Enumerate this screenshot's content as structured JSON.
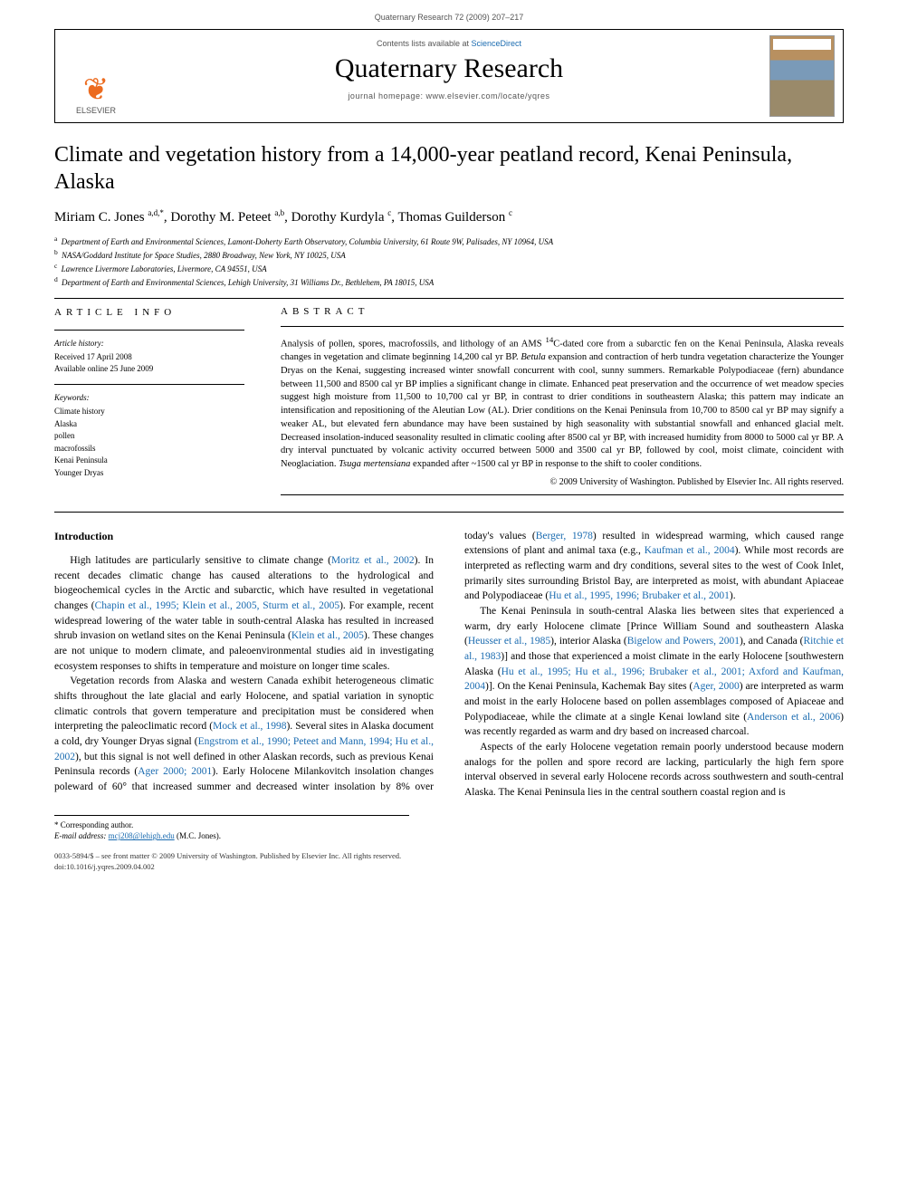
{
  "header": {
    "citation": "Quaternary Research 72 (2009) 207–217"
  },
  "banner": {
    "publisher_name": "ELSEVIER",
    "contents_prefix": "Contents lists available at ",
    "contents_link": "ScienceDirect",
    "journal": "Quaternary Research",
    "homepage_prefix": "journal homepage: ",
    "homepage_url": "www.elsevier.com/locate/yqres"
  },
  "article": {
    "title": "Climate and vegetation history from a 14,000-year peatland record, Kenai Peninsula, Alaska",
    "authors": [
      {
        "name": "Miriam C. Jones",
        "marks": "a,d,*"
      },
      {
        "name": "Dorothy M. Peteet",
        "marks": "a,b"
      },
      {
        "name": "Dorothy Kurdyla",
        "marks": "c"
      },
      {
        "name": "Thomas Guilderson",
        "marks": "c"
      }
    ],
    "affiliations": [
      {
        "key": "a",
        "text": "Department of Earth and Environmental Sciences, Lamont-Doherty Earth Observatory, Columbia University, 61 Route 9W, Palisades, NY 10964, USA"
      },
      {
        "key": "b",
        "text": "NASA/Goddard Institute for Space Studies, 2880 Broadway, New York, NY 10025, USA"
      },
      {
        "key": "c",
        "text": "Lawrence Livermore Laboratories, Livermore, CA 94551, USA"
      },
      {
        "key": "d",
        "text": "Department of Earth and Environmental Sciences, Lehigh University, 31 Williams Dr., Bethlehem, PA 18015, USA"
      }
    ]
  },
  "article_info": {
    "heading": "ARTICLE INFO",
    "history_label": "Article history:",
    "received": "Received 17 April 2008",
    "online": "Available online 25 June 2009",
    "keywords_label": "Keywords:",
    "keywords": [
      "Climate history",
      "Alaska",
      "pollen",
      "macrofossils",
      "Kenai Peninsula",
      "Younger Dryas"
    ]
  },
  "abstract": {
    "heading": "ABSTRACT",
    "text_parts": [
      "Analysis of pollen, spores, macrofossils, and lithology of an AMS ",
      "14",
      "C-dated core from a subarctic fen on the Kenai Peninsula, Alaska reveals changes in vegetation and climate beginning 14,200 cal yr BP. ",
      "Betula",
      " expansion and contraction of herb tundra vegetation characterize the Younger Dryas on the Kenai, suggesting increased winter snowfall concurrent with cool, sunny summers. Remarkable Polypodiaceae (fern) abundance between 11,500 and 8500 cal yr BP implies a significant change in climate. Enhanced peat preservation and the occurrence of wet meadow species suggest high moisture from 11,500 to 10,700 cal yr BP, in contrast to drier conditions in southeastern Alaska; this pattern may indicate an intensification and repositioning of the Aleutian Low (AL). Drier conditions on the Kenai Peninsula from 10,700 to 8500 cal yr BP may signify a weaker AL, but elevated fern abundance may have been sustained by high seasonality with substantial snowfall and enhanced glacial melt. Decreased insolation-induced seasonality resulted in climatic cooling after 8500 cal yr BP, with increased humidity from 8000 to 5000 cal yr BP. A dry interval punctuated by volcanic activity occurred between 5000 and 3500 cal yr BP, followed by cool, moist climate, coincident with Neoglaciation. ",
      "Tsuga mertensiana",
      " expanded after ~1500 cal yr BP in response to the shift to cooler conditions."
    ],
    "copyright": "© 2009 University of Washington. Published by Elsevier Inc. All rights reserved."
  },
  "body": {
    "intro_head": "Introduction",
    "p1_a": "High latitudes are particularly sensitive to climate change (",
    "p1_link1": "Moritz et al., 2002",
    "p1_b": "). In recent decades climatic change has caused alterations to the hydrological and biogeochemical cycles in the Arctic and subarctic, which have resulted in vegetational changes (",
    "p1_link2": "Chapin et al., 1995; Klein et al., 2005, Sturm et al., 2005",
    "p1_c": "). For example, recent widespread lowering of the water table in south-central Alaska has resulted in increased shrub invasion on wetland sites on the Kenai Peninsula (",
    "p1_link3": "Klein et al., 2005",
    "p1_d": "). These changes are not unique to modern climate, and paleoenvironmental studies aid in investigating ecosystem responses to shifts in temperature and moisture on longer time scales.",
    "p2_a": "Vegetation records from Alaska and western Canada exhibit heterogeneous climatic shifts throughout the late glacial and early Holocene, and spatial variation in synoptic climatic controls that govern temperature and precipitation must be considered when interpreting the paleoclimatic record (",
    "p2_link1": "Mock et al., 1998",
    "p2_b": "). Several sites in Alaska document a cold, dry Younger Dryas signal (",
    "p2_link2": "Engstrom et al., 1990; Peteet and Mann, 1994; Hu et al., 2002",
    "p2_c": "), but this signal is not well defined in other Alaskan records, such as previous Kenai Peninsula records (",
    "p2_link3": "Ager 2000; 2001",
    "p2_d": "). Early Holocene Milankovitch insolation changes poleward of 60° that increased summer and decreased winter insolation by 8% over today's values (",
    "p2_link4": "Berger, 1978",
    "p2_e": ") resulted in widespread warming, which caused range extensions of plant and animal taxa (e.g., ",
    "p2_link5": "Kaufman et al., 2004",
    "p2_f": "). While most records are interpreted as reflecting warm and dry conditions, several sites to the west of Cook Inlet, primarily sites surrounding Bristol Bay, are interpreted as moist, with abundant Apiaceae and Polypodiaceae (",
    "p2_link6": "Hu et al., 1995, 1996; Brubaker et al., 2001",
    "p2_g": ").",
    "p3_a": "The Kenai Peninsula in south-central Alaska lies between sites that experienced a warm, dry early Holocene climate [Prince William Sound and southeastern Alaska (",
    "p3_link1": "Heusser et al., 1985",
    "p3_b": "), interior Alaska (",
    "p3_link2": "Bigelow and Powers, 2001",
    "p3_c": "), and Canada (",
    "p3_link3": "Ritchie et al., 1983",
    "p3_d": ")] and those that experienced a moist climate in the early Holocene [southwestern Alaska (",
    "p3_link4": "Hu et al., 1995; Hu et al., 1996; Brubaker et al., 2001; Axford and Kaufman, 2004",
    "p3_e": ")]. On the Kenai Peninsula, Kachemak Bay sites (",
    "p3_link5": "Ager, 2000",
    "p3_f": ") are interpreted as warm and moist in the early Holocene based on pollen assemblages composed of Apiaceae and Polypodiaceae, while the climate at a single Kenai lowland site (",
    "p3_link6": "Anderson et al., 2006",
    "p3_g": ") was recently regarded as warm and dry based on increased charcoal.",
    "p4": "Aspects of the early Holocene vegetation remain poorly understood because modern analogs for the pollen and spore record are lacking, particularly the high fern spore interval observed in several early Holocene records across southwestern and south-central Alaska. The Kenai Peninsula lies in the central southern coastal region and is"
  },
  "footnotes": {
    "corr_label": "* Corresponding author.",
    "email_label": "E-mail address:",
    "email": "mcj208@lehigh.edu",
    "email_who": "(M.C. Jones)."
  },
  "footer": {
    "line1": "0033-5894/$ – see front matter © 2009 University of Washington. Published by Elsevier Inc. All rights reserved.",
    "line2": "doi:10.1016/j.yqres.2009.04.002"
  },
  "colors": {
    "link": "#1a6bb0",
    "elsevier_orange": "#ec6b1f"
  }
}
